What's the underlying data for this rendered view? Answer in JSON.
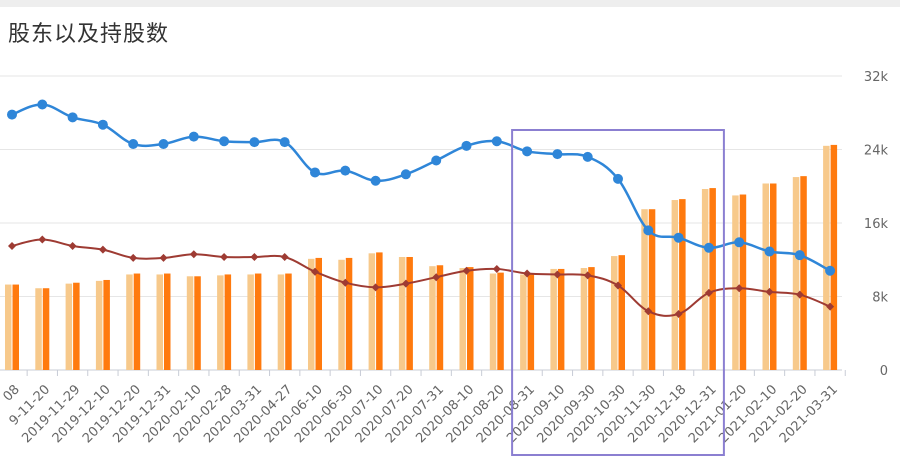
{
  "header": {
    "title": "股东以及持股数"
  },
  "chart_data": {
    "type": "bar+line",
    "title": "股东以及持股数",
    "categories": [
      "-08",
      "-11-20",
      "2019-11-29",
      "2019-12-10",
      "2019-12-20",
      "2019-12-31",
      "2020-02-10",
      "2020-02-28",
      "2020-03-31",
      "2020-04-27",
      "2020-06-10",
      "2020-06-30",
      "2020-07-10",
      "2020-07-20",
      "2020-07-31",
      "2020-08-10",
      "2020-08-20",
      "2020-08-31",
      "2020-09-10",
      "2020-09-30",
      "2020-10-30",
      "2020-11-30",
      "2020-12-18",
      "2020-12-31",
      "2021-01-20",
      "2021-02-10",
      "2021-02-20",
      "2021-03-31"
    ],
    "tick_labels": [
      "08",
      "9-11-20",
      "2019-11-29",
      "2019-12-10",
      "2019-12-20",
      "2019-12-31",
      "2020-02-10",
      "2020-02-28",
      "2020-03-31",
      "2020-04-27",
      "2020-06-10",
      "2020-06-30",
      "2020-07-10",
      "2020-07-20",
      "2020-07-31",
      "2020-08-10",
      "2020-08-20",
      "2020-08-31",
      "2020-09-10",
      "2020-09-30",
      "2020-10-30",
      "2020-11-30",
      "2020-12-18",
      "2020-12-31",
      "2021-01-20",
      "2021-02-10",
      "2021-02-20",
      "2021-03-31"
    ],
    "y_axis": {
      "ticks": [
        "0",
        "8k",
        "16k",
        "24k",
        "32k"
      ],
      "tick_values": [
        0,
        8000,
        16000,
        24000,
        32000
      ],
      "ylim": [
        0,
        32000
      ],
      "position": "right"
    },
    "series": [
      {
        "type": "bar",
        "color": "#f7c98b",
        "values": [
          9300,
          8900,
          9400,
          9700,
          10400,
          10400,
          10200,
          10300,
          10400,
          10400,
          12100,
          12000,
          12700,
          12300,
          11300,
          11100,
          10500,
          10400,
          11000,
          11100,
          12400,
          17500,
          18500,
          19700,
          19000,
          20300,
          21000,
          24400
        ]
      },
      {
        "type": "bar",
        "color": "#ff7a0e",
        "values": [
          9300,
          8900,
          9500,
          9800,
          10500,
          10500,
          10200,
          10400,
          10500,
          10500,
          12200,
          12200,
          12800,
          12300,
          11400,
          11200,
          10600,
          10400,
          11000,
          11200,
          12500,
          17500,
          18600,
          19800,
          19100,
          20300,
          21100,
          24500
        ]
      },
      {
        "type": "line",
        "color": "#2f86d8",
        "values": [
          27800,
          28900,
          27500,
          26700,
          24600,
          24600,
          25400,
          24900,
          24800,
          24800,
          21500,
          21700,
          20600,
          21300,
          22800,
          24400,
          24900,
          23800,
          23500,
          23200,
          20800,
          15200,
          14400,
          13300,
          13900,
          12900,
          12500,
          10800
        ]
      },
      {
        "type": "line",
        "color": "#9e3b33",
        "values": [
          13500,
          14200,
          13500,
          13100,
          12200,
          12200,
          12600,
          12300,
          12300,
          12300,
          10700,
          9500,
          9000,
          9400,
          10100,
          10800,
          11000,
          10500,
          10400,
          10300,
          9200,
          6400,
          6100,
          8400,
          8900,
          8500,
          8200,
          6900
        ]
      }
    ],
    "annotations": [
      {
        "type": "highlight-box",
        "color": "#8b7fd1",
        "from_category": "2020-08-31",
        "to_category": "2020-12-31"
      }
    ],
    "grid": true,
    "legend": "none"
  }
}
